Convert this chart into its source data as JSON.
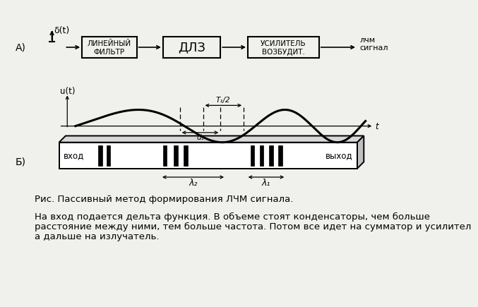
{
  "bg_color": "#f0f0ec",
  "title_A": "А)",
  "title_B": "Б)",
  "delta_label": "δ(t)",
  "box1_label": "ЛИНЕЙНЫЙ\nФИЛЬТР",
  "box2_label": "ДЛЗ",
  "box3_label": "УСИЛИТЕЛЬ\nВОЗБУДИТ.",
  "output_label_1": "лчм",
  "output_label_2": "сигнал",
  "u_label": "u(t)",
  "t_label": "t",
  "t1_label": "T₁/2",
  "d1_label": "d₁",
  "lambda2_label": "λ₂",
  "lambda1_label": "λ₁",
  "vhod_label": "вход",
  "vyhod_label": "выход",
  "caption": "Рис. Пассивный метод формирования ЛЧМ сигнала.",
  "body_line1": "На вход подается дельта функция. В объеме стоят конденсаторы, чем больше",
  "body_line2": "расстояние между ними, тем больше частота. Потом все идет на сумматор и усилител",
  "body_line3": "а дальше на излучатель."
}
